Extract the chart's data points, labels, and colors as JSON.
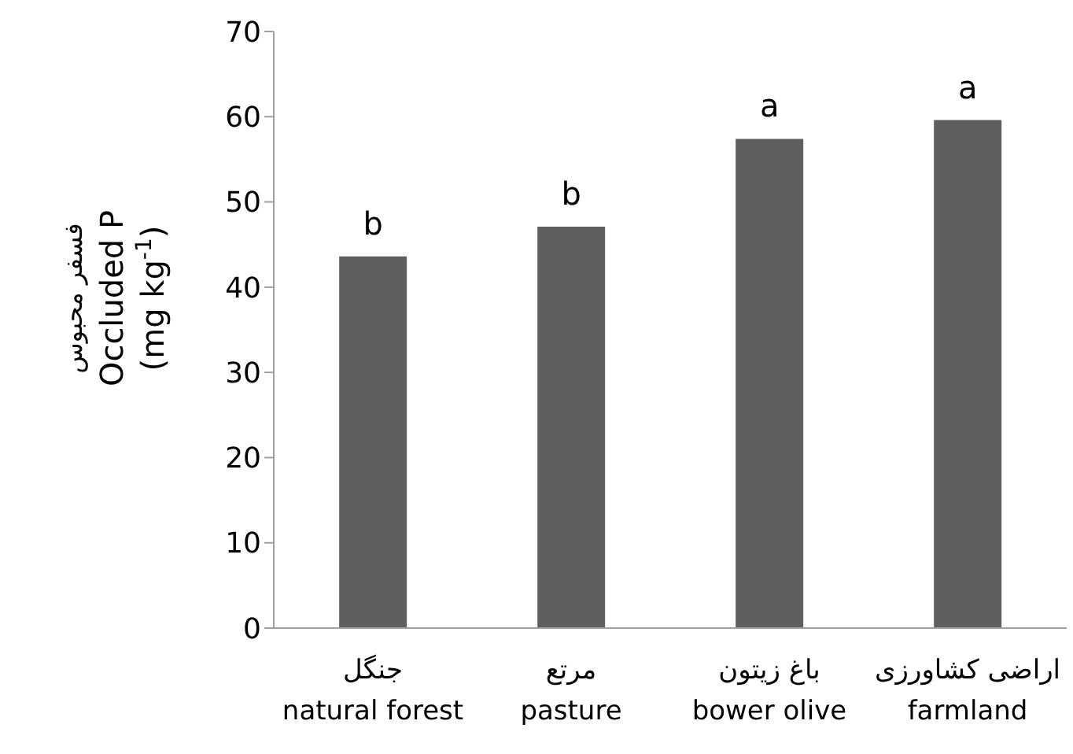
{
  "chart_data": {
    "type": "bar",
    "ylabel": "فسفر محبوس\nOccluded  P\n(mg kg$^{-1}$)",
    "categories": [
      "جنگل\nnatural forest",
      "مرتع\npasture",
      "باغ زیتون\nbower olive",
      "اراضی کشاورزی\nfarmland"
    ],
    "values": [
      43.6,
      47.1,
      57.4,
      59.6
    ],
    "color": "#5f5f5f",
    "ylim": [
      0,
      70
    ],
    "yticks": [
      0,
      10,
      20,
      30,
      40,
      50,
      60,
      70
    ],
    "annotations": [
      {
        "text": "b",
        "x": "جنگل\nnatural forest",
        "y": 43.6
      },
      {
        "text": "b",
        "x": "مرتع\npasture",
        "y": 47.1
      },
      {
        "text": "a",
        "x": "باغ زیتون\nbower olive",
        "y": 57.4
      },
      {
        "text": "a",
        "x": "اراضی کشاورزی\nfarmland",
        "y": 59.6
      }
    ]
  }
}
